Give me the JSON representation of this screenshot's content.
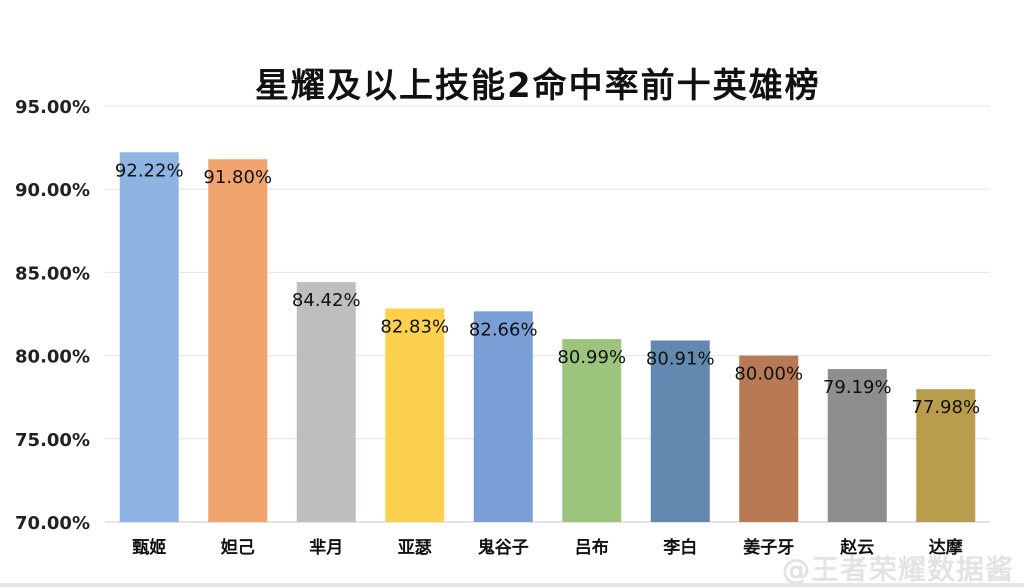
{
  "chart_data": {
    "type": "bar",
    "title": "星耀及以上技能2命中率前十英雄榜",
    "categories": [
      "甄姬",
      "妲己",
      "芈月",
      "亚瑟",
      "鬼谷子",
      "吕布",
      "李白",
      "姜子牙",
      "赵云",
      "达摩"
    ],
    "values": [
      92.22,
      91.8,
      84.42,
      82.83,
      82.66,
      80.99,
      80.91,
      80.0,
      79.19,
      77.98
    ],
    "data_labels": [
      "92.22%",
      "91.80%",
      "84.42%",
      "82.83%",
      "82.66%",
      "80.99%",
      "80.91%",
      "80.00%",
      "79.19%",
      "77.98%"
    ],
    "colors": [
      "#8db4e2",
      "#f2a46e",
      "#bfbdc0",
      "#fdd14e",
      "#7a9fd6",
      "#9cc47c",
      "#628ab0",
      "#b87a55",
      "#8e8d90",
      "#b89d4c"
    ],
    "y_ticks": [
      "70.00%",
      "75.00%",
      "80.00%",
      "85.00%",
      "90.00%",
      "95.00%"
    ],
    "y_tick_values": [
      70,
      75,
      80,
      85,
      90,
      95
    ],
    "ylim": [
      70,
      95
    ],
    "xlabel": "",
    "ylabel": "",
    "grid": true,
    "legend": "none"
  },
  "watermark": "@王者荣耀数据酱"
}
